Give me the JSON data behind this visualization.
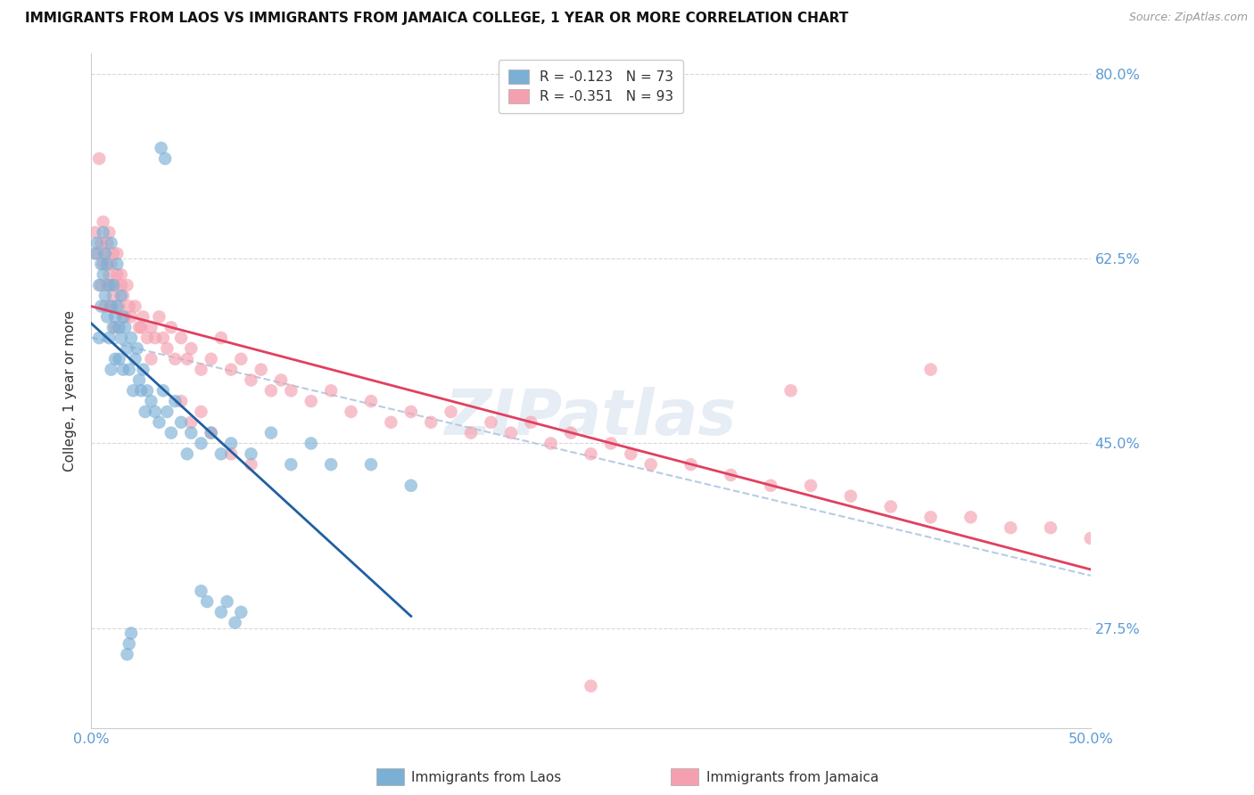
{
  "title": "IMMIGRANTS FROM LAOS VS IMMIGRANTS FROM JAMAICA COLLEGE, 1 YEAR OR MORE CORRELATION CHART",
  "source": "Source: ZipAtlas.com",
  "ylabel": "College, 1 year or more",
  "xlim": [
    0.0,
    0.5
  ],
  "ylim": [
    0.18,
    0.82
  ],
  "xticks": [
    0.0,
    0.1,
    0.2,
    0.3,
    0.4,
    0.5
  ],
  "xticklabels": [
    "0.0%",
    "",
    "",
    "",
    "",
    "50.0%"
  ],
  "yticks": [
    0.275,
    0.45,
    0.625,
    0.8
  ],
  "yticklabels": [
    "27.5%",
    "45.0%",
    "62.5%",
    "80.0%"
  ],
  "legend_laos": "R = -0.123   N = 73",
  "legend_jamaica": "R = -0.351   N = 93",
  "color_laos": "#7bafd4",
  "color_jamaica": "#f4a0b0",
  "line_color_laos": "#2060a0",
  "line_color_jamaica": "#e04060",
  "line_color_combined": "#b8cce4",
  "watermark": "ZIPatlas",
  "background_color": "#ffffff",
  "grid_color": "#d8d8d8",
  "tick_color": "#5b9bd5",
  "laos_x": [
    0.002,
    0.003,
    0.004,
    0.004,
    0.005,
    0.005,
    0.006,
    0.006,
    0.007,
    0.007,
    0.008,
    0.008,
    0.009,
    0.009,
    0.01,
    0.01,
    0.01,
    0.011,
    0.011,
    0.012,
    0.012,
    0.013,
    0.013,
    0.014,
    0.014,
    0.015,
    0.015,
    0.016,
    0.016,
    0.017,
    0.018,
    0.019,
    0.02,
    0.021,
    0.022,
    0.023,
    0.024,
    0.025,
    0.026,
    0.027,
    0.028,
    0.03,
    0.032,
    0.034,
    0.036,
    0.038,
    0.04,
    0.042,
    0.045,
    0.048,
    0.05,
    0.055,
    0.06,
    0.065,
    0.07,
    0.08,
    0.09,
    0.1,
    0.11,
    0.12,
    0.14,
    0.16,
    0.065,
    0.068,
    0.072,
    0.075,
    0.055,
    0.058,
    0.018,
    0.019,
    0.02,
    0.035,
    0.037
  ],
  "laos_y": [
    0.63,
    0.64,
    0.55,
    0.6,
    0.62,
    0.58,
    0.61,
    0.65,
    0.59,
    0.63,
    0.57,
    0.62,
    0.6,
    0.55,
    0.64,
    0.58,
    0.52,
    0.6,
    0.56,
    0.57,
    0.53,
    0.58,
    0.62,
    0.56,
    0.53,
    0.59,
    0.55,
    0.57,
    0.52,
    0.56,
    0.54,
    0.52,
    0.55,
    0.5,
    0.53,
    0.54,
    0.51,
    0.5,
    0.52,
    0.48,
    0.5,
    0.49,
    0.48,
    0.47,
    0.5,
    0.48,
    0.46,
    0.49,
    0.47,
    0.44,
    0.46,
    0.45,
    0.46,
    0.44,
    0.45,
    0.44,
    0.46,
    0.43,
    0.45,
    0.43,
    0.43,
    0.41,
    0.29,
    0.3,
    0.28,
    0.29,
    0.31,
    0.3,
    0.25,
    0.26,
    0.27,
    0.73,
    0.72
  ],
  "jamaica_x": [
    0.002,
    0.003,
    0.004,
    0.005,
    0.005,
    0.006,
    0.006,
    0.007,
    0.007,
    0.008,
    0.008,
    0.009,
    0.009,
    0.01,
    0.01,
    0.011,
    0.011,
    0.012,
    0.012,
    0.013,
    0.014,
    0.015,
    0.016,
    0.017,
    0.018,
    0.019,
    0.02,
    0.022,
    0.024,
    0.026,
    0.028,
    0.03,
    0.032,
    0.034,
    0.036,
    0.038,
    0.04,
    0.042,
    0.045,
    0.048,
    0.05,
    0.055,
    0.06,
    0.065,
    0.07,
    0.075,
    0.08,
    0.085,
    0.09,
    0.095,
    0.1,
    0.11,
    0.12,
    0.13,
    0.14,
    0.15,
    0.16,
    0.17,
    0.18,
    0.19,
    0.2,
    0.21,
    0.22,
    0.23,
    0.24,
    0.25,
    0.26,
    0.27,
    0.28,
    0.3,
    0.32,
    0.34,
    0.36,
    0.38,
    0.4,
    0.42,
    0.44,
    0.46,
    0.48,
    0.5,
    0.013,
    0.015,
    0.025,
    0.03,
    0.045,
    0.05,
    0.055,
    0.06,
    0.07,
    0.08,
    0.35,
    0.42,
    0.25
  ],
  "jamaica_y": [
    0.65,
    0.63,
    0.72,
    0.64,
    0.6,
    0.66,
    0.62,
    0.63,
    0.58,
    0.64,
    0.6,
    0.65,
    0.61,
    0.62,
    0.58,
    0.63,
    0.59,
    0.6,
    0.56,
    0.61,
    0.58,
    0.6,
    0.59,
    0.57,
    0.6,
    0.58,
    0.57,
    0.58,
    0.56,
    0.57,
    0.55,
    0.56,
    0.55,
    0.57,
    0.55,
    0.54,
    0.56,
    0.53,
    0.55,
    0.53,
    0.54,
    0.52,
    0.53,
    0.55,
    0.52,
    0.53,
    0.51,
    0.52,
    0.5,
    0.51,
    0.5,
    0.49,
    0.5,
    0.48,
    0.49,
    0.47,
    0.48,
    0.47,
    0.48,
    0.46,
    0.47,
    0.46,
    0.47,
    0.45,
    0.46,
    0.44,
    0.45,
    0.44,
    0.43,
    0.43,
    0.42,
    0.41,
    0.41,
    0.4,
    0.39,
    0.38,
    0.38,
    0.37,
    0.37,
    0.36,
    0.63,
    0.61,
    0.56,
    0.53,
    0.49,
    0.47,
    0.48,
    0.46,
    0.44,
    0.43,
    0.5,
    0.52,
    0.22
  ],
  "title_fontsize": 11,
  "axis_label_fontsize": 11,
  "tick_fontsize": 11.5,
  "legend_fontsize": 11
}
